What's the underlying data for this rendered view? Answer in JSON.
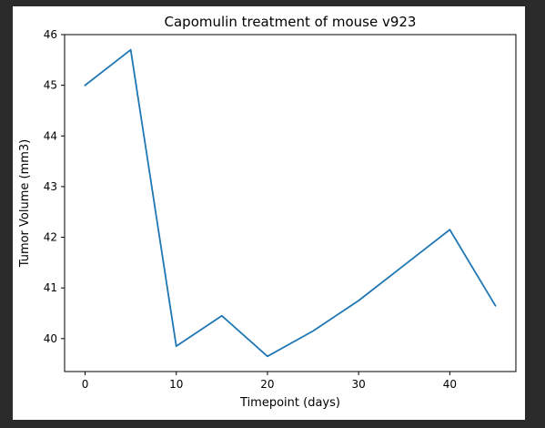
{
  "chart_data": {
    "type": "line",
    "title": "Capomulin treatment of mouse v923",
    "xlabel": "Timepoint (days)",
    "ylabel": "Tumor Volume (mm3)",
    "x": [
      0,
      5,
      10,
      15,
      20,
      25,
      30,
      35,
      40,
      45
    ],
    "series": [
      {
        "values": [
          45.0,
          45.7,
          39.85,
          40.45,
          39.65,
          40.15,
          40.75,
          41.45,
          42.15,
          40.65
        ],
        "color": "#1f77b4"
      }
    ],
    "xlim": [
      -2.25,
      47.25
    ],
    "ylim": [
      39.35,
      46.0
    ],
    "xticks": [
      0,
      10,
      20,
      30,
      40
    ],
    "yticks": [
      40,
      41,
      42,
      43,
      44,
      45,
      46
    ],
    "grid": false,
    "legend": "none"
  }
}
